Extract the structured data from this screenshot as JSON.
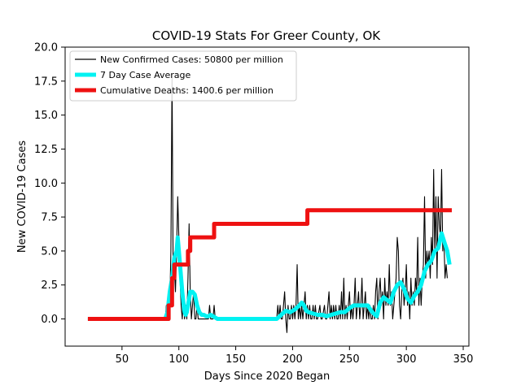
{
  "chart_data": {
    "type": "line",
    "title": "COVID-19 Stats For Greer County, OK",
    "xlabel": "Days Since 2020 Began",
    "ylabel": "New COVID-19 Cases",
    "xlim": [
      0,
      355
    ],
    "ylim": [
      -2.0,
      20.0
    ],
    "x_ticks": [
      50,
      100,
      150,
      200,
      250,
      300,
      350
    ],
    "x_tick_labels": [
      "50",
      "100",
      "150",
      "200",
      "250",
      "300",
      "350"
    ],
    "y_ticks": [
      0,
      2.5,
      5,
      7.5,
      10,
      12.5,
      15,
      17.5,
      20
    ],
    "y_tick_labels": [
      "0.0",
      "2.5",
      "5.0",
      "7.5",
      "10.0",
      "12.5",
      "15.0",
      "17.5",
      "20.0"
    ],
    "grid": false,
    "legend_position": "top-left",
    "series": [
      {
        "name": "New Confirmed Cases: 50800 per million",
        "color": "#000000",
        "style": "thin",
        "points": [
          [
            20,
            0
          ],
          [
            88,
            0
          ],
          [
            89,
            1
          ],
          [
            90,
            0
          ],
          [
            91,
            2
          ],
          [
            92,
            1
          ],
          [
            93,
            5
          ],
          [
            94,
            18
          ],
          [
            95,
            3
          ],
          [
            96,
            4
          ],
          [
            97,
            2
          ],
          [
            98,
            5
          ],
          [
            99,
            9
          ],
          [
            100,
            6
          ],
          [
            101,
            3
          ],
          [
            102,
            1
          ],
          [
            103,
            0
          ],
          [
            104,
            2
          ],
          [
            105,
            0
          ],
          [
            106,
            1
          ],
          [
            107,
            0
          ],
          [
            108,
            3
          ],
          [
            109,
            7
          ],
          [
            110,
            2
          ],
          [
            111,
            0
          ],
          [
            112,
            1
          ],
          [
            113,
            2
          ],
          [
            114,
            0
          ],
          [
            115,
            0
          ],
          [
            116,
            1
          ],
          [
            117,
            0
          ],
          [
            118,
            0
          ],
          [
            125,
            0
          ],
          [
            126,
            0
          ],
          [
            127,
            1
          ],
          [
            128,
            0
          ],
          [
            130,
            0
          ],
          [
            131,
            1
          ],
          [
            132,
            0
          ],
          [
            134,
            0
          ],
          [
            186,
            0
          ],
          [
            187,
            1
          ],
          [
            188,
            0
          ],
          [
            189,
            1
          ],
          [
            190,
            0
          ],
          [
            191,
            0
          ],
          [
            192,
            1
          ],
          [
            193,
            2
          ],
          [
            194,
            0
          ],
          [
            195,
            -1
          ],
          [
            196,
            1
          ],
          [
            197,
            0
          ],
          [
            198,
            0
          ],
          [
            199,
            1
          ],
          [
            200,
            0
          ],
          [
            201,
            1
          ],
          [
            202,
            0
          ],
          [
            203,
            1
          ],
          [
            204,
            4
          ],
          [
            205,
            0
          ],
          [
            206,
            1
          ],
          [
            207,
            0
          ],
          [
            208,
            1
          ],
          [
            209,
            0
          ],
          [
            210,
            1
          ],
          [
            211,
            2
          ],
          [
            212,
            0
          ],
          [
            213,
            1
          ],
          [
            214,
            0
          ],
          [
            215,
            1
          ],
          [
            216,
            0
          ],
          [
            217,
            0
          ],
          [
            218,
            1
          ],
          [
            219,
            0
          ],
          [
            220,
            1
          ],
          [
            221,
            0
          ],
          [
            222,
            0
          ],
          [
            224,
            1
          ],
          [
            225,
            0
          ],
          [
            226,
            0
          ],
          [
            228,
            1
          ],
          [
            229,
            0
          ],
          [
            230,
            0
          ],
          [
            232,
            2
          ],
          [
            233,
            0
          ],
          [
            234,
            1
          ],
          [
            235,
            0
          ],
          [
            236,
            1
          ],
          [
            237,
            0
          ],
          [
            238,
            1
          ],
          [
            239,
            0
          ],
          [
            240,
            0
          ],
          [
            241,
            1
          ],
          [
            242,
            0
          ],
          [
            243,
            2
          ],
          [
            244,
            0
          ],
          [
            245,
            3
          ],
          [
            246,
            0
          ],
          [
            247,
            1
          ],
          [
            248,
            0
          ],
          [
            249,
            1
          ],
          [
            250,
            2
          ],
          [
            251,
            0
          ],
          [
            252,
            1
          ],
          [
            253,
            0
          ],
          [
            254,
            1
          ],
          [
            255,
            3
          ],
          [
            256,
            0
          ],
          [
            257,
            1
          ],
          [
            258,
            2
          ],
          [
            259,
            0
          ],
          [
            260,
            1
          ],
          [
            261,
            3
          ],
          [
            262,
            0
          ],
          [
            263,
            1
          ],
          [
            264,
            2
          ],
          [
            265,
            0
          ],
          [
            266,
            1
          ],
          [
            267,
            0
          ],
          [
            268,
            1
          ],
          [
            269,
            0
          ],
          [
            270,
            0
          ],
          [
            271,
            1
          ],
          [
            272,
            0
          ],
          [
            273,
            2
          ],
          [
            274,
            3
          ],
          [
            275,
            0
          ],
          [
            276,
            2
          ],
          [
            277,
            3
          ],
          [
            278,
            1
          ],
          [
            279,
            2
          ],
          [
            280,
            0
          ],
          [
            281,
            3
          ],
          [
            282,
            1
          ],
          [
            283,
            2
          ],
          [
            284,
            1
          ],
          [
            285,
            4
          ],
          [
            286,
            1
          ],
          [
            287,
            2
          ],
          [
            288,
            0
          ],
          [
            289,
            1
          ],
          [
            290,
            2
          ],
          [
            291,
            3
          ],
          [
            292,
            6
          ],
          [
            293,
            5
          ],
          [
            294,
            1
          ],
          [
            295,
            0
          ],
          [
            296,
            2
          ],
          [
            297,
            3
          ],
          [
            298,
            1
          ],
          [
            299,
            2
          ],
          [
            300,
            4
          ],
          [
            301,
            1
          ],
          [
            302,
            2
          ],
          [
            303,
            0
          ],
          [
            304,
            3
          ],
          [
            305,
            1
          ],
          [
            306,
            2
          ],
          [
            307,
            1
          ],
          [
            308,
            3
          ],
          [
            309,
            2
          ],
          [
            310,
            6
          ],
          [
            311,
            1
          ],
          [
            312,
            3
          ],
          [
            313,
            1
          ],
          [
            314,
            3
          ],
          [
            315,
            4
          ],
          [
            316,
            9
          ],
          [
            317,
            3
          ],
          [
            318,
            5
          ],
          [
            319,
            4
          ],
          [
            320,
            5
          ],
          [
            321,
            3
          ],
          [
            322,
            6
          ],
          [
            323,
            4
          ],
          [
            324,
            11
          ],
          [
            325,
            5
          ],
          [
            326,
            9
          ],
          [
            327,
            3
          ],
          [
            328,
            9
          ],
          [
            329,
            7
          ],
          [
            330,
            6
          ],
          [
            331,
            11
          ],
          [
            332,
            5
          ],
          [
            333,
            6
          ],
          [
            334,
            3
          ],
          [
            335,
            4
          ],
          [
            336,
            3
          ]
        ]
      },
      {
        "name": "7 Day Case Average",
        "color": "#00f2f2",
        "style": "thick",
        "points": [
          [
            20,
            0
          ],
          [
            88,
            0
          ],
          [
            90,
            0.5
          ],
          [
            92,
            2
          ],
          [
            94,
            3
          ],
          [
            96,
            4.5
          ],
          [
            98,
            5
          ],
          [
            99,
            6
          ],
          [
            100,
            5
          ],
          [
            101,
            4
          ],
          [
            102,
            3
          ],
          [
            103,
            2
          ],
          [
            104,
            1.2
          ],
          [
            105,
            0.5
          ],
          [
            106,
            0.3
          ],
          [
            107,
            0.5
          ],
          [
            108,
            1
          ],
          [
            110,
            2
          ],
          [
            112,
            2
          ],
          [
            114,
            1.8
          ],
          [
            116,
            1
          ],
          [
            118,
            0.5
          ],
          [
            120,
            0.3
          ],
          [
            122,
            0.3
          ],
          [
            124,
            0.2
          ],
          [
            126,
            0.2
          ],
          [
            128,
            0.3
          ],
          [
            130,
            0.2
          ],
          [
            132,
            0.1
          ],
          [
            134,
            0
          ],
          [
            186,
            0
          ],
          [
            190,
            0.3
          ],
          [
            194,
            0.6
          ],
          [
            198,
            0.5
          ],
          [
            202,
            0.7
          ],
          [
            206,
            1
          ],
          [
            208,
            1.2
          ],
          [
            210,
            1
          ],
          [
            212,
            0.6
          ],
          [
            214,
            0.5
          ],
          [
            218,
            0.4
          ],
          [
            222,
            0.3
          ],
          [
            226,
            0.3
          ],
          [
            230,
            0.2
          ],
          [
            234,
            0.3
          ],
          [
            238,
            0.4
          ],
          [
            242,
            0.5
          ],
          [
            246,
            0.5
          ],
          [
            250,
            0.8
          ],
          [
            254,
            1
          ],
          [
            258,
            1
          ],
          [
            262,
            1
          ],
          [
            266,
            1
          ],
          [
            270,
            0.5
          ],
          [
            274,
            0.2
          ],
          [
            277,
            1.2
          ],
          [
            280,
            1.6
          ],
          [
            283,
            1.4
          ],
          [
            286,
            1.2
          ],
          [
            289,
            2
          ],
          [
            292,
            2.5
          ],
          [
            295,
            2.7
          ],
          [
            298,
            2.2
          ],
          [
            301,
            1.5
          ],
          [
            304,
            1.2
          ],
          [
            307,
            1.7
          ],
          [
            310,
            2
          ],
          [
            313,
            2.5
          ],
          [
            316,
            3.5
          ],
          [
            319,
            4
          ],
          [
            322,
            4.3
          ],
          [
            325,
            5
          ],
          [
            328,
            5.2
          ],
          [
            331,
            6.3
          ],
          [
            334,
            5.5
          ],
          [
            336,
            5
          ],
          [
            338,
            4
          ]
        ]
      },
      {
        "name": "Cumulative Deaths: 1400.6 per million",
        "color": "#ee1111",
        "style": "thick",
        "points": [
          [
            20,
            0
          ],
          [
            91,
            0
          ],
          [
            91,
            1
          ],
          [
            94,
            1
          ],
          [
            94,
            3
          ],
          [
            96,
            3
          ],
          [
            96,
            4
          ],
          [
            108,
            4
          ],
          [
            108,
            5
          ],
          [
            110,
            5
          ],
          [
            110,
            6
          ],
          [
            131,
            6
          ],
          [
            131,
            7
          ],
          [
            213,
            7
          ],
          [
            213,
            8
          ],
          [
            340,
            8
          ]
        ]
      }
    ]
  }
}
